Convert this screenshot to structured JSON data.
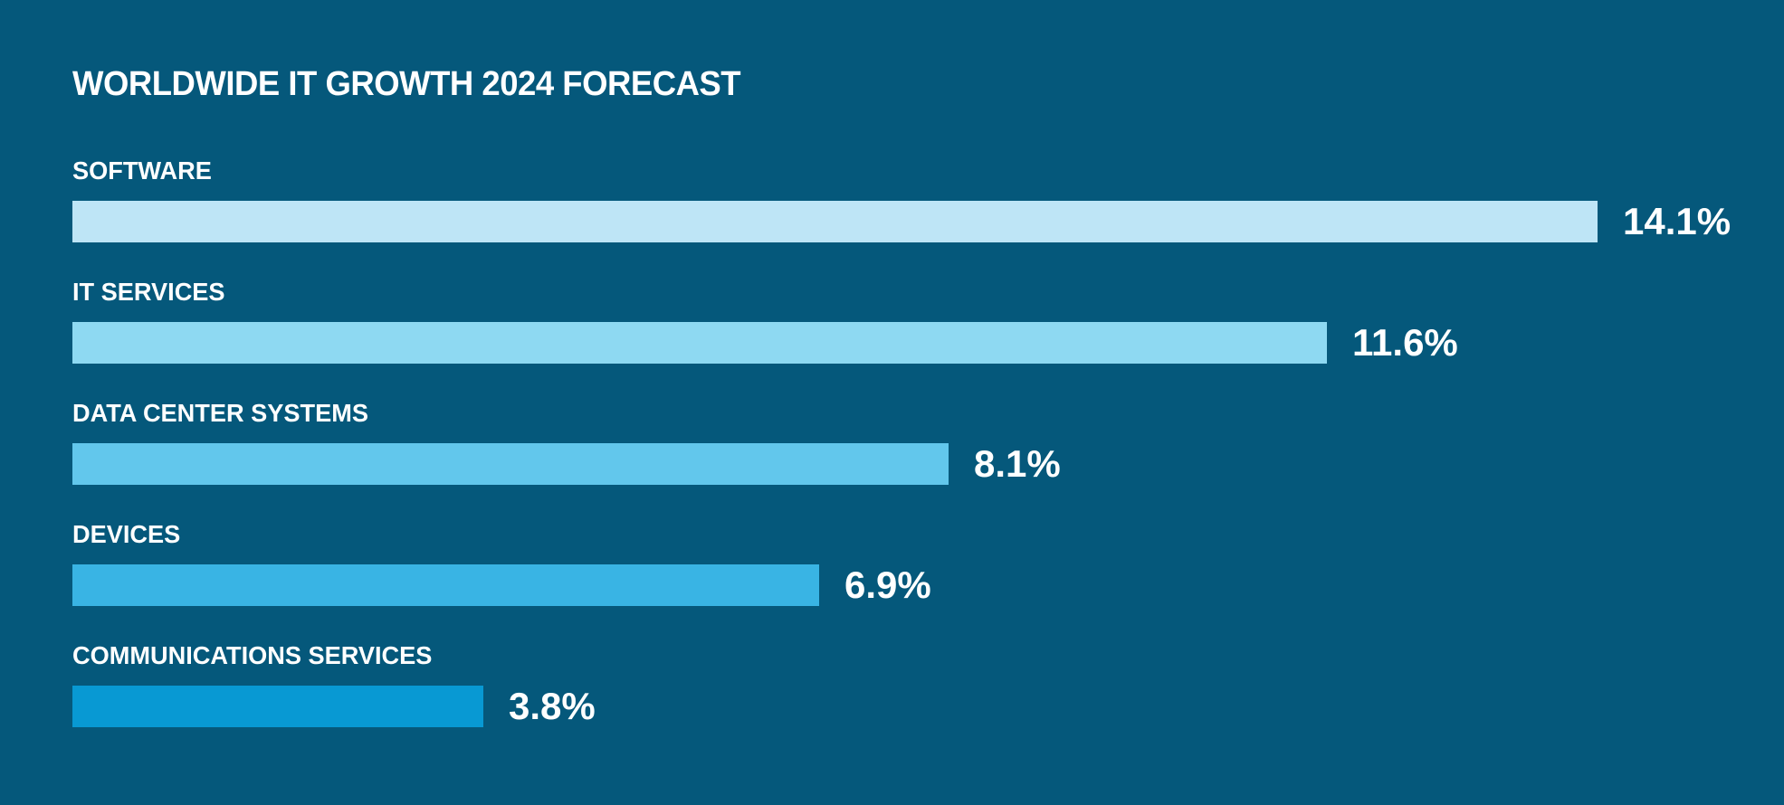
{
  "title": "WORLDWIDE IT GROWTH 2024 FORECAST",
  "colors": {
    "background": "#05587B",
    "text": "#FFFFFF",
    "bar_colors": [
      "#BEE5F6",
      "#8ED9F2",
      "#62C7EC",
      "#39B4E4",
      "#0899D3"
    ]
  },
  "chart_data": {
    "type": "bar",
    "orientation": "horizontal",
    "title": "WORLDWIDE IT GROWTH 2024 FORECAST",
    "categories": [
      "SOFTWARE",
      "IT SERVICES",
      "DATA CENTER SYSTEMS",
      "DEVICES",
      "COMMUNICATIONS SERVICES"
    ],
    "values": [
      14.1,
      11.6,
      8.1,
      6.9,
      3.8
    ],
    "value_labels": [
      "14.1%",
      "11.6%",
      "8.1%",
      "6.9%",
      "3.8%"
    ],
    "value_suffix": "%",
    "xlim": [
      0,
      14.1
    ],
    "bar_colors": [
      "#BEE5F6",
      "#8ED9F2",
      "#62C7EC",
      "#39B4E4",
      "#0899D3"
    ],
    "grid": false,
    "legend": false,
    "data_labels_position": "right-of-bar"
  }
}
